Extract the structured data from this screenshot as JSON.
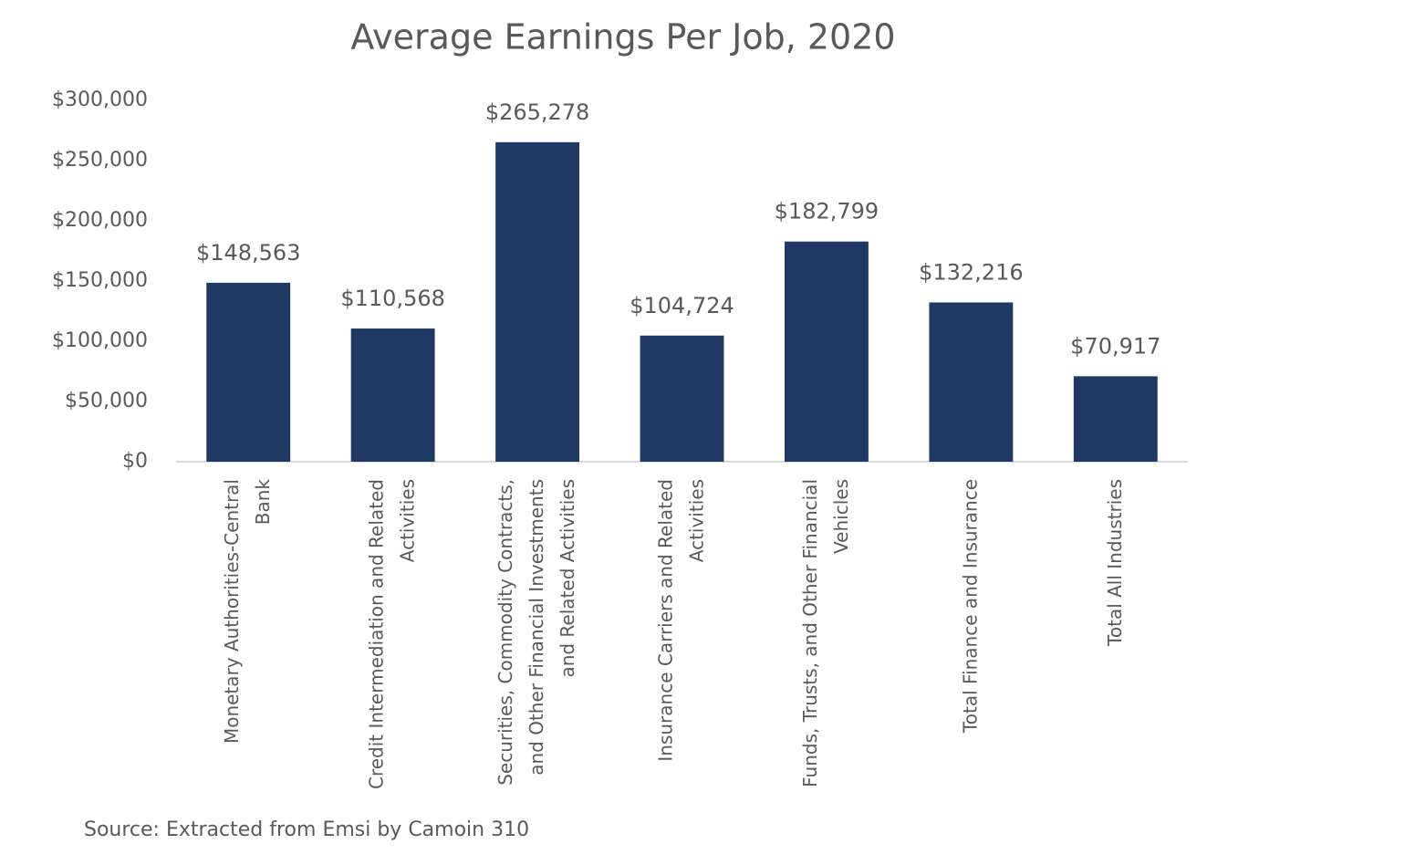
{
  "chart_data": {
    "type": "bar",
    "title": "Average Earnings Per Job, 2020",
    "categories": [
      "Monetary Authorities-Central Bank",
      "Credit Intermediation and Related Activities",
      "Securities, Commodity Contracts, and Other Financial Investments and Related Activities",
      "Insurance Carriers and Related Activities",
      "Funds, Trusts, and Other Financial Vehicles",
      "Total Finance and Insurance",
      "Total All Industries"
    ],
    "values": [
      148563,
      110568,
      265278,
      104724,
      182799,
      132216,
      70917
    ],
    "value_labels": [
      "$148,563",
      "$110,568",
      "$265,278",
      "$104,724",
      "$182,799",
      "$132,216",
      "$70,917"
    ],
    "color": "#203864",
    "ylim": [
      0,
      300000
    ],
    "yticks": [
      {
        "value": 0,
        "label": "$0"
      },
      {
        "value": 50000,
        "label": "$50,000"
      },
      {
        "value": 100000,
        "label": "$100,000"
      },
      {
        "value": 150000,
        "label": "$150,000"
      },
      {
        "value": 200000,
        "label": "$200,000"
      },
      {
        "value": 250000,
        "label": "$250,000"
      },
      {
        "value": 300000,
        "label": "$300,000"
      }
    ],
    "grid": false,
    "source": "Source: Extracted from Emsi by Camoin 310"
  }
}
